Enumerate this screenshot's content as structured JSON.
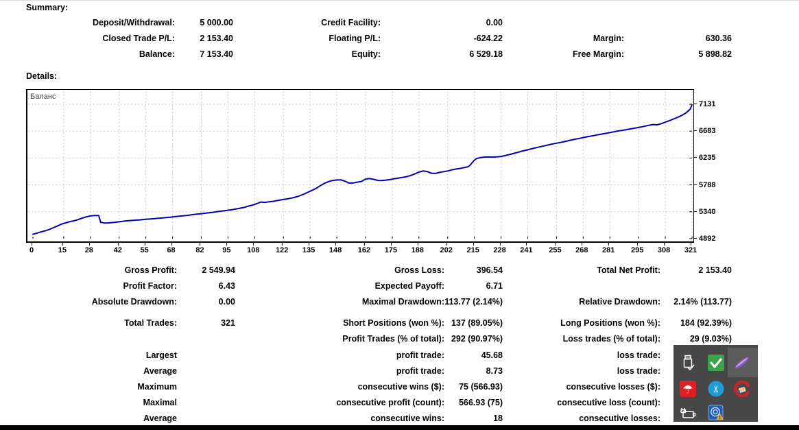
{
  "summary": {
    "heading": "Summary:",
    "rows": [
      [
        {
          "label": "Deposit/Withdrawal:",
          "value": "5 000.00"
        },
        {
          "label": "Credit Facility:",
          "value": "0.00"
        },
        null
      ],
      [
        {
          "label": "Closed Trade P/L:",
          "value": "2 153.40"
        },
        {
          "label": "Floating P/L:",
          "value": "-624.22"
        },
        {
          "label": "Margin:",
          "value": "630.36"
        }
      ],
      [
        {
          "label": "Balance:",
          "value": "7 153.40"
        },
        {
          "label": "Equity:",
          "value": "6 529.18"
        },
        {
          "label": "Free Margin:",
          "value": "5 898.82"
        }
      ]
    ]
  },
  "details": {
    "heading": "Details:",
    "rows": [
      [
        {
          "label": "Gross Profit:",
          "value": "2 549.94"
        },
        {
          "label": "Gross Loss:",
          "value": "396.54"
        },
        {
          "label": "Total Net Profit:",
          "value": "2 153.40"
        }
      ],
      [
        {
          "label": "Profit Factor:",
          "value": "6.43"
        },
        {
          "label": "Expected Payoff:",
          "value": "6.71"
        },
        null
      ],
      [
        {
          "label": "Absolute Drawdown:",
          "value": "0.00"
        },
        {
          "label": "Maximal Drawdown:",
          "value": "113.77 (2.14%)"
        },
        {
          "label": "Relative Drawdown:",
          "value": "2.14% (113.77)"
        }
      ],
      [
        {
          "label": "Total Trades:",
          "value": "321"
        },
        {
          "label": "Short Positions (won %):",
          "value": "137 (89.05%)"
        },
        {
          "label": "Long Positions (won %):",
          "value": "184 (92.39%)"
        }
      ],
      [
        null,
        {
          "label": "Profit Trades (% of total):",
          "value": "292 (90.97%)"
        },
        {
          "label": "Loss trades (% of total):",
          "value": "29 (9.03%)"
        }
      ],
      [
        {
          "label": "Largest",
          "value": ""
        },
        {
          "label": "profit trade:",
          "value": "45.68"
        },
        {
          "label": "loss trade:",
          "value": ""
        }
      ],
      [
        {
          "label": "Average",
          "value": ""
        },
        {
          "label": "profit trade:",
          "value": "8.73"
        },
        {
          "label": "loss trade:",
          "value": ""
        }
      ],
      [
        {
          "label": "Maximum",
          "value": ""
        },
        {
          "label": "consecutive wins ($):",
          "value": "75 (566.93)"
        },
        {
          "label": "consecutive losses ($):",
          "value": ""
        }
      ],
      [
        {
          "label": "Maximal",
          "value": ""
        },
        {
          "label": "consecutive profit (count):",
          "value": "566.93 (75)"
        },
        {
          "label": "consecutive loss (count):",
          "value": ""
        }
      ],
      [
        {
          "label": "Average",
          "value": ""
        },
        {
          "label": "consecutive wins:",
          "value": "18"
        },
        {
          "label": "consecutive losses:",
          "value": ""
        }
      ]
    ]
  },
  "chart_data": {
    "type": "line",
    "title": "Баланс",
    "xlabel": "",
    "ylabel": "",
    "xlim": [
      0,
      321
    ],
    "ylim": [
      4892,
      7131
    ],
    "grid": true,
    "legend_position": "top-left",
    "line_color": "#0000B2",
    "x_ticks": [
      0,
      15,
      28,
      42,
      55,
      68,
      82,
      95,
      108,
      122,
      135,
      148,
      162,
      175,
      188,
      202,
      215,
      228,
      241,
      255,
      268,
      281,
      295,
      308,
      321
    ],
    "y_ticks": [
      7131,
      6683,
      6235,
      5788,
      5340,
      4892
    ],
    "series": [
      {
        "name": "Баланс",
        "points": [
          [
            0,
            4965
          ],
          [
            2,
            4985
          ],
          [
            4,
            5005
          ],
          [
            6,
            5025
          ],
          [
            8,
            5045
          ],
          [
            10,
            5075
          ],
          [
            12,
            5105
          ],
          [
            14,
            5135
          ],
          [
            16,
            5155
          ],
          [
            18,
            5175
          ],
          [
            20,
            5190
          ],
          [
            22,
            5210
          ],
          [
            24,
            5235
          ],
          [
            26,
            5255
          ],
          [
            28,
            5270
          ],
          [
            30,
            5277
          ],
          [
            32,
            5278
          ],
          [
            33,
            5165
          ],
          [
            35,
            5152
          ],
          [
            37,
            5155
          ],
          [
            40,
            5165
          ],
          [
            43,
            5178
          ],
          [
            46,
            5190
          ],
          [
            49,
            5198
          ],
          [
            52,
            5205
          ],
          [
            55,
            5215
          ],
          [
            58,
            5222
          ],
          [
            61,
            5230
          ],
          [
            64,
            5240
          ],
          [
            67,
            5250
          ],
          [
            70,
            5262
          ],
          [
            73,
            5272
          ],
          [
            76,
            5283
          ],
          [
            79,
            5297
          ],
          [
            82,
            5308
          ],
          [
            85,
            5320
          ],
          [
            88,
            5333
          ],
          [
            91,
            5348
          ],
          [
            94,
            5360
          ],
          [
            97,
            5375
          ],
          [
            100,
            5393
          ],
          [
            103,
            5413
          ],
          [
            105,
            5435
          ],
          [
            107,
            5452
          ],
          [
            109,
            5475
          ],
          [
            111,
            5502
          ],
          [
            113,
            5495
          ],
          [
            115,
            5507
          ],
          [
            117,
            5515
          ],
          [
            120,
            5533
          ],
          [
            123,
            5550
          ],
          [
            126,
            5568
          ],
          [
            129,
            5595
          ],
          [
            132,
            5635
          ],
          [
            135,
            5683
          ],
          [
            138,
            5730
          ],
          [
            140,
            5775
          ],
          [
            142,
            5815
          ],
          [
            144,
            5843
          ],
          [
            146,
            5862
          ],
          [
            148,
            5870
          ],
          [
            150,
            5872
          ],
          [
            152,
            5848
          ],
          [
            154,
            5818
          ],
          [
            156,
            5820
          ],
          [
            158,
            5833
          ],
          [
            160,
            5845
          ],
          [
            162,
            5885
          ],
          [
            164,
            5893
          ],
          [
            166,
            5880
          ],
          [
            168,
            5862
          ],
          [
            170,
            5860
          ],
          [
            172,
            5868
          ],
          [
            174,
            5875
          ],
          [
            176,
            5890
          ],
          [
            178,
            5902
          ],
          [
            180,
            5912
          ],
          [
            182,
            5925
          ],
          [
            184,
            5945
          ],
          [
            186,
            5970
          ],
          [
            188,
            6000
          ],
          [
            190,
            6020
          ],
          [
            192,
            6010
          ],
          [
            194,
            5982
          ],
          [
            196,
            5978
          ],
          [
            198,
            5995
          ],
          [
            200,
            6008
          ],
          [
            202,
            6020
          ],
          [
            204,
            6038
          ],
          [
            206,
            6052
          ],
          [
            208,
            6062
          ],
          [
            210,
            6075
          ],
          [
            212,
            6090
          ],
          [
            213,
            6120
          ],
          [
            214,
            6160
          ],
          [
            215,
            6200
          ],
          [
            216,
            6225
          ],
          [
            218,
            6242
          ],
          [
            220,
            6250
          ],
          [
            222,
            6252
          ],
          [
            224,
            6250
          ],
          [
            226,
            6255
          ],
          [
            228,
            6262
          ],
          [
            230,
            6275
          ],
          [
            232,
            6293
          ],
          [
            234,
            6310
          ],
          [
            236,
            6328
          ],
          [
            238,
            6348
          ],
          [
            240,
            6365
          ],
          [
            243,
            6390
          ],
          [
            246,
            6415
          ],
          [
            249,
            6438
          ],
          [
            252,
            6462
          ],
          [
            255,
            6482
          ],
          [
            258,
            6502
          ],
          [
            261,
            6525
          ],
          [
            264,
            6548
          ],
          [
            267,
            6568
          ],
          [
            270,
            6590
          ],
          [
            273,
            6608
          ],
          [
            276,
            6628
          ],
          [
            279,
            6645
          ],
          [
            282,
            6665
          ],
          [
            285,
            6685
          ],
          [
            288,
            6702
          ],
          [
            291,
            6720
          ],
          [
            294,
            6738
          ],
          [
            297,
            6758
          ],
          [
            300,
            6780
          ],
          [
            302,
            6793
          ],
          [
            304,
            6788
          ],
          [
            306,
            6808
          ],
          [
            308,
            6833
          ],
          [
            310,
            6858
          ],
          [
            312,
            6885
          ],
          [
            314,
            6913
          ],
          [
            316,
            6945
          ],
          [
            318,
            6985
          ],
          [
            320,
            7045
          ],
          [
            321,
            7120
          ]
        ]
      }
    ]
  },
  "tray": {
    "icons": [
      {
        "name": "usb-eject-icon",
        "row": 0,
        "col": 0
      },
      {
        "name": "green-check-icon",
        "row": 0,
        "col": 1
      },
      {
        "name": "purple-feather-icon",
        "row": 0,
        "col": 2
      },
      {
        "name": "avira-umbrella-icon",
        "row": 1,
        "col": 0
      },
      {
        "name": "blue-scissors-icon",
        "row": 1,
        "col": 1
      },
      {
        "name": "red-brush-icon",
        "row": 1,
        "col": 2
      },
      {
        "name": "power-plug-icon",
        "row": 2,
        "col": 0
      },
      {
        "name": "network-warning-icon",
        "row": 2,
        "col": 1
      }
    ]
  },
  "colors": {
    "balance_line": "#0000B2",
    "grid": "#c8c8c8",
    "tray_background": "#474747",
    "tray_highlight": "#5d5d5d",
    "taskbar": "#020202"
  }
}
